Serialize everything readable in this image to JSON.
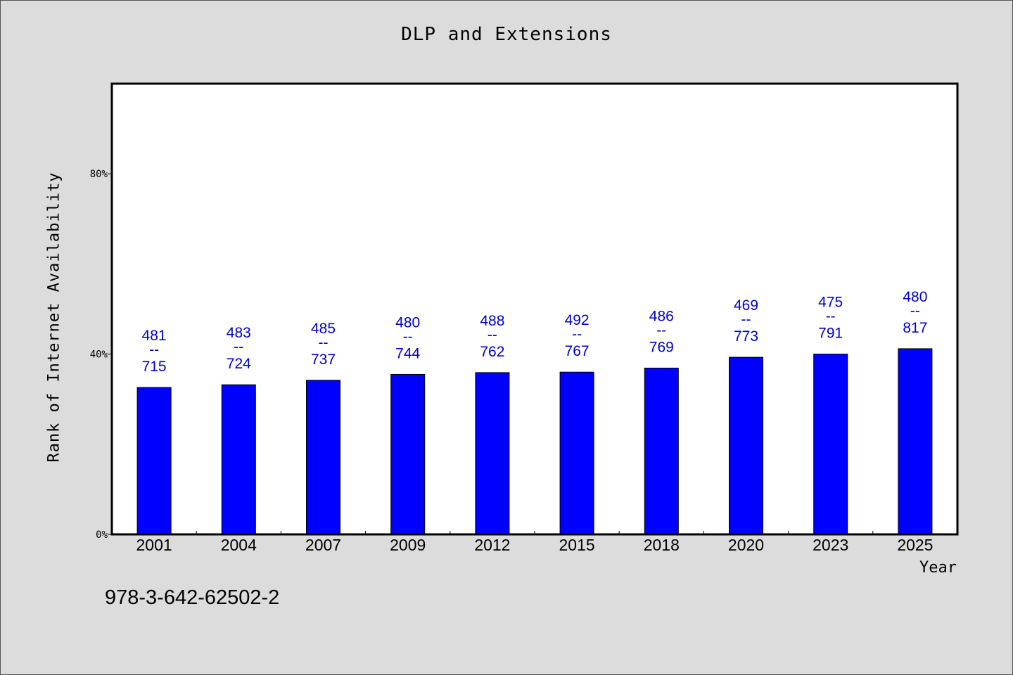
{
  "chart_data": {
    "type": "bar",
    "title": "DLP and Extensions",
    "xlabel": "Year",
    "ylabel": "Rank of Internet Availability",
    "categories": [
      "2001",
      "2004",
      "2007",
      "2009",
      "2012",
      "2015",
      "2018",
      "2020",
      "2023",
      "2025"
    ],
    "values": [
      32.6,
      33.2,
      34.2,
      35.5,
      35.9,
      36.0,
      36.9,
      39.3,
      40.0,
      41.2
    ],
    "data_labels_top": [
      "481",
      "483",
      "485",
      "480",
      "488",
      "492",
      "486",
      "469",
      "475",
      "480"
    ],
    "data_labels_sep": "--",
    "data_labels_bottom": [
      "715",
      "724",
      "737",
      "744",
      "762",
      "767",
      "769",
      "773",
      "791",
      "817"
    ],
    "ylim": [
      0,
      100
    ],
    "yticks": [
      0,
      40,
      80
    ],
    "ytick_labels": [
      "0%",
      "40%",
      "80%"
    ],
    "grid": false,
    "bar_color": "#0000ff",
    "label_color": "#0000cc"
  },
  "footer_text": "978-3-642-62502-2"
}
